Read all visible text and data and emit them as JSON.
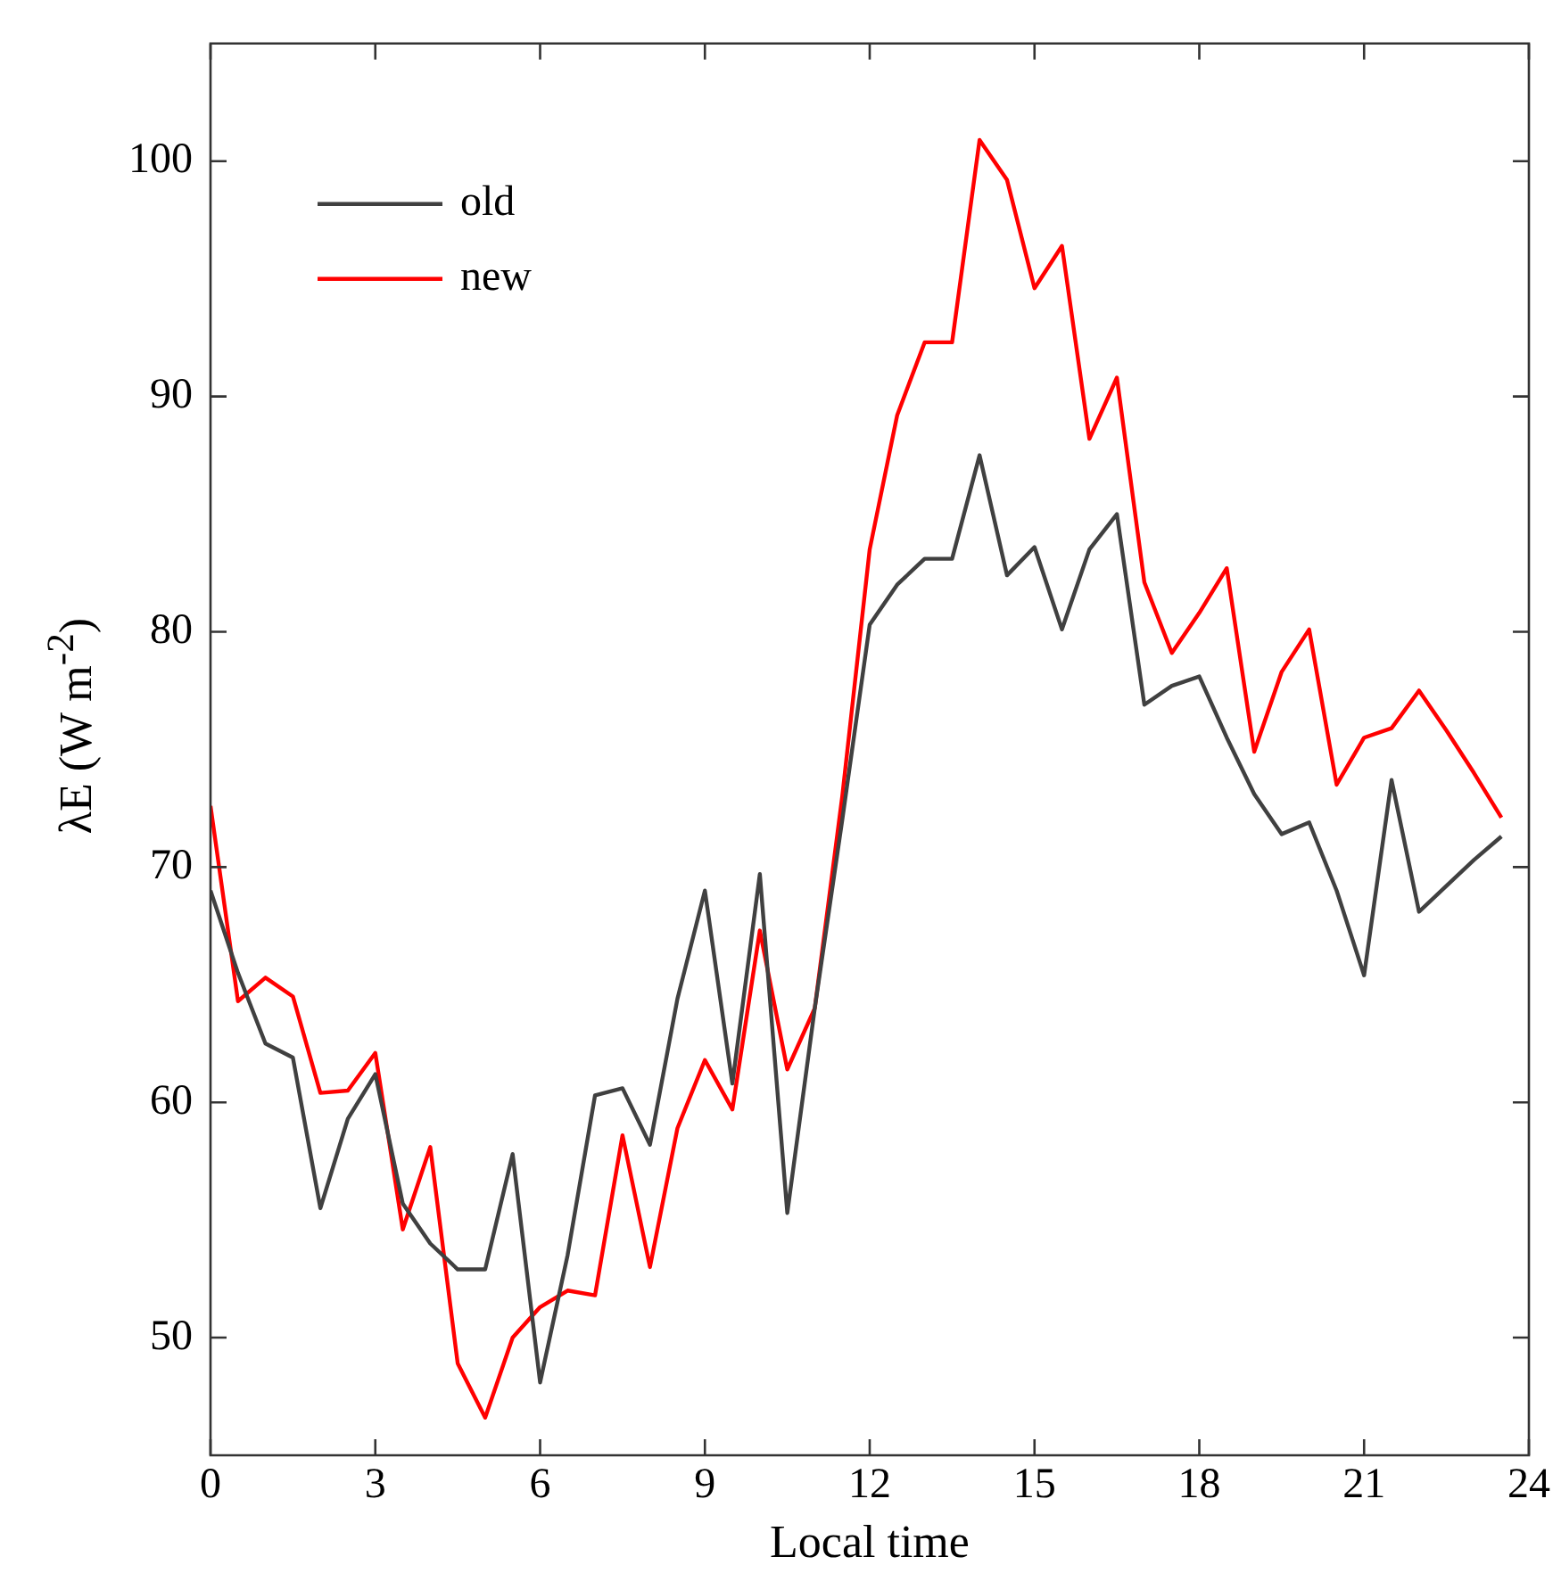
{
  "chart_data": {
    "type": "line",
    "xlabel": "Local time",
    "ylabel": "λE (W m$^{-2}$)",
    "x": [
      0,
      0.5,
      1,
      1.5,
      2,
      2.5,
      3,
      3.5,
      4,
      4.5,
      5,
      5.5,
      6,
      6.5,
      7,
      7.5,
      8,
      8.5,
      9,
      9.5,
      10,
      10.5,
      11,
      11.5,
      12,
      12.5,
      13,
      13.5,
      14,
      14.5,
      15,
      15.5,
      16,
      16.5,
      17,
      17.5,
      18,
      18.5,
      19,
      19.5,
      20,
      20.5,
      21,
      21.5,
      22,
      22.5,
      23,
      23.5
    ],
    "series": [
      {
        "name": "old",
        "color": "#404040",
        "values": [
          69.0,
          65.5,
          62.5,
          61.9,
          55.5,
          59.3,
          61.2,
          55.7,
          54.0,
          52.9,
          52.9,
          57.8,
          48.1,
          53.5,
          60.3,
          60.6,
          58.2,
          64.4,
          69.0,
          60.8,
          69.7,
          55.3,
          64.0,
          72.0,
          80.3,
          82.0,
          83.1,
          83.1,
          87.5,
          82.4,
          83.6,
          80.1,
          83.5,
          85.0,
          76.9,
          77.7,
          78.1,
          75.5,
          73.1,
          71.4,
          71.9,
          69.0,
          65.4,
          73.7,
          68.1,
          69.2,
          70.3,
          71.3
        ]
      },
      {
        "name": "new",
        "color": "#ff0000",
        "values": [
          72.6,
          64.3,
          65.3,
          64.5,
          60.4,
          60.5,
          62.1,
          54.6,
          58.1,
          48.9,
          46.6,
          50.0,
          51.3,
          52.0,
          51.8,
          58.6,
          53.0,
          58.9,
          61.8,
          59.7,
          67.3,
          61.4,
          64.0,
          73.0,
          83.5,
          89.2,
          92.3,
          92.3,
          100.9,
          99.2,
          94.6,
          96.4,
          88.2,
          90.8,
          82.1,
          79.1,
          80.8,
          82.7,
          74.9,
          78.3,
          80.1,
          73.5,
          75.5,
          75.9,
          77.5,
          75.8,
          74.0,
          72.1
        ]
      }
    ],
    "xlim": [
      0,
      24
    ],
    "xticks": [
      0,
      3,
      6,
      9,
      12,
      15,
      18,
      21,
      24
    ],
    "ylim": [
      45,
      105
    ],
    "yticks": [
      50,
      60,
      70,
      80,
      90,
      100
    ],
    "grid": false,
    "legend": "top left",
    "marker": "none",
    "line_style": "solid"
  }
}
